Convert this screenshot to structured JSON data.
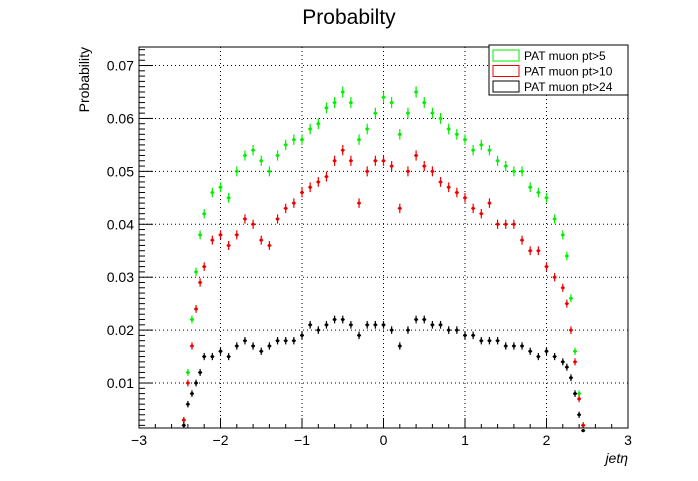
{
  "chart_data": {
    "type": "scatter",
    "title": "Probabilty",
    "xlabel": "jetη",
    "ylabel": "Probability",
    "xlim": [
      -3,
      3
    ],
    "ylim": [
      0.0015,
      0.0735
    ],
    "grid": true,
    "legend_position": "top-right",
    "x_ticks": [
      -3,
      -2,
      -1,
      0,
      1,
      2,
      3
    ],
    "x_tick_labels": [
      "−3",
      "−2",
      "−1",
      "0",
      "1",
      "2",
      "3"
    ],
    "y_ticks": [
      0.01,
      0.02,
      0.03,
      0.04,
      0.05,
      0.06,
      0.07
    ],
    "y_tick_labels": [
      "0.01",
      "0.02",
      "0.03",
      "0.04",
      "0.05",
      "0.06",
      "0.07"
    ],
    "x": [
      -2.45,
      -2.4,
      -2.35,
      -2.3,
      -2.25,
      -2.2,
      -2.1,
      -2.0,
      -1.9,
      -1.8,
      -1.7,
      -1.6,
      -1.5,
      -1.4,
      -1.3,
      -1.2,
      -1.1,
      -1.0,
      -0.9,
      -0.8,
      -0.7,
      -0.6,
      -0.5,
      -0.4,
      -0.3,
      -0.2,
      -0.1,
      0.0,
      0.1,
      0.2,
      0.3,
      0.4,
      0.5,
      0.6,
      0.7,
      0.8,
      0.9,
      1.0,
      1.1,
      1.2,
      1.3,
      1.4,
      1.5,
      1.6,
      1.7,
      1.8,
      1.9,
      2.0,
      2.1,
      2.2,
      2.25,
      2.3,
      2.35,
      2.4,
      2.45
    ],
    "series": [
      {
        "name": "PAT muon pt>5",
        "color": "#00ee00",
        "y": [
          0.003,
          0.012,
          0.022,
          0.031,
          0.038,
          0.042,
          0.046,
          0.047,
          0.045,
          0.05,
          0.053,
          0.054,
          0.052,
          0.05,
          0.053,
          0.055,
          0.056,
          0.056,
          0.058,
          0.059,
          0.062,
          0.063,
          0.065,
          0.063,
          0.056,
          0.058,
          0.061,
          0.064,
          0.063,
          0.057,
          0.061,
          0.065,
          0.063,
          0.061,
          0.06,
          0.058,
          0.057,
          0.056,
          0.054,
          0.055,
          0.054,
          0.052,
          0.051,
          0.05,
          0.05,
          0.047,
          0.046,
          0.045,
          0.041,
          0.038,
          0.034,
          0.026,
          0.016,
          0.008,
          0.002
        ]
      },
      {
        "name": "PAT muon pt>10",
        "color": "#ee0000",
        "y": [
          0.003,
          0.01,
          0.017,
          0.024,
          0.029,
          0.032,
          0.037,
          0.038,
          0.036,
          0.038,
          0.041,
          0.04,
          0.037,
          0.036,
          0.041,
          0.043,
          0.044,
          0.046,
          0.047,
          0.048,
          0.049,
          0.052,
          0.054,
          0.052,
          0.044,
          0.05,
          0.052,
          0.052,
          0.051,
          0.043,
          0.05,
          0.053,
          0.051,
          0.05,
          0.048,
          0.047,
          0.046,
          0.045,
          0.043,
          0.042,
          0.044,
          0.04,
          0.04,
          0.04,
          0.037,
          0.035,
          0.035,
          0.032,
          0.03,
          0.028,
          0.025,
          0.02,
          0.014,
          0.007,
          0.002
        ]
      },
      {
        "name": "PAT muon pt>24",
        "color": "#000000",
        "y": [
          0.002,
          0.006,
          0.008,
          0.01,
          0.012,
          0.015,
          0.015,
          0.016,
          0.015,
          0.017,
          0.018,
          0.017,
          0.016,
          0.017,
          0.018,
          0.018,
          0.018,
          0.019,
          0.021,
          0.02,
          0.021,
          0.022,
          0.022,
          0.021,
          0.019,
          0.021,
          0.021,
          0.021,
          0.02,
          0.017,
          0.02,
          0.022,
          0.022,
          0.021,
          0.021,
          0.02,
          0.02,
          0.019,
          0.019,
          0.018,
          0.018,
          0.018,
          0.017,
          0.017,
          0.017,
          0.016,
          0.015,
          0.016,
          0.015,
          0.014,
          0.013,
          0.011,
          0.008,
          0.004,
          0.001
        ]
      }
    ]
  }
}
